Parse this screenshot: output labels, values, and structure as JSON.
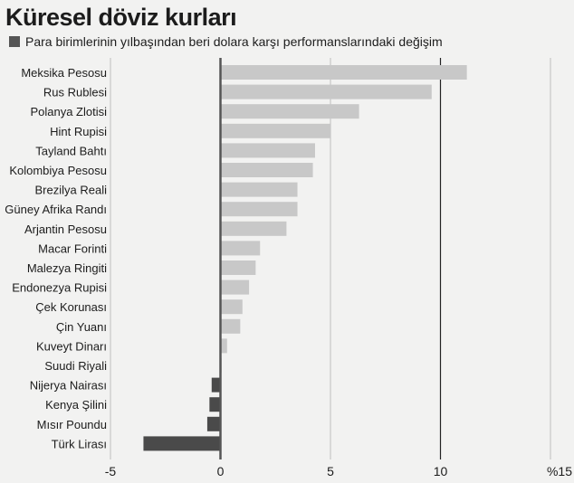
{
  "title": "Küresel döviz kurları",
  "chart_data": {
    "type": "bar",
    "orientation": "horizontal",
    "series": [
      {
        "name": "Para birimlerinin yılbaşından beri dolara karşı performanslarındaki değişim"
      }
    ],
    "categories": [
      "Meksika Pesosu",
      "Rus Rublesi",
      "Polanya Zlotisi",
      "Hint Rupisi",
      "Tayland Bahtı",
      "Kolombiya Pesosu",
      "Brezilya Reali",
      "Güney Afrika Randı",
      "Arjantin Pesosu",
      "Macar Forinti",
      "Malezya Ringiti",
      "Endonezya Rupisi",
      "Çek Korunası",
      "Çin Yuanı",
      "Kuveyt Dinarı",
      "Suudi Riyali",
      "Nijerya Nairası",
      "Kenya Şilini",
      "Mısır Poundu",
      "Türk Lirası"
    ],
    "values": [
      11.2,
      9.6,
      6.3,
      5.0,
      4.3,
      4.2,
      3.5,
      3.5,
      3.0,
      1.8,
      1.6,
      1.3,
      1.0,
      0.9,
      0.3,
      0.05,
      -0.4,
      -0.5,
      -0.6,
      -3.5
    ],
    "xlim": [
      -5,
      15
    ],
    "xticks": [
      "-5",
      "0",
      "5",
      "10",
      "%15"
    ],
    "xtick_values": [
      -5,
      0,
      5,
      10,
      15
    ],
    "grid": true,
    "legend_position": "top-left",
    "colors": {
      "positive": "#c8c8c8",
      "negative": "#4a4a4a",
      "zero_line": "#555555",
      "grid": "#bdbdbd",
      "grid_major": "#222222"
    }
  }
}
